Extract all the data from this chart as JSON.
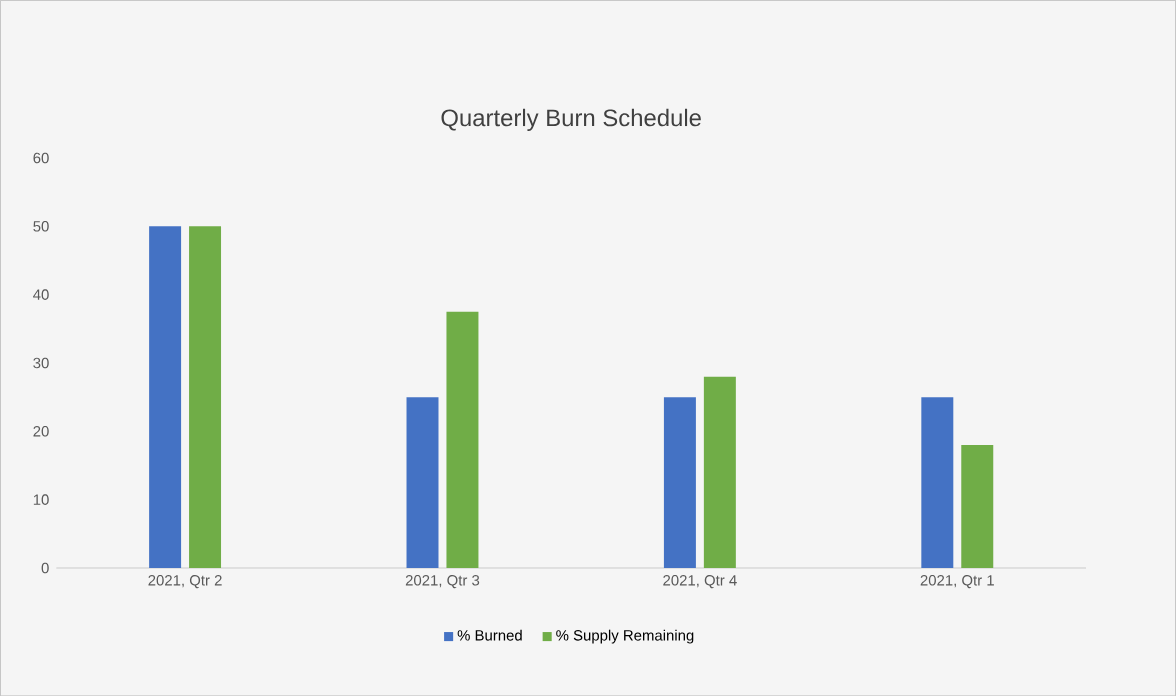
{
  "chart_data": {
    "type": "bar",
    "title": "Quarterly Burn Schedule",
    "categories": [
      "2021, Qtr 2",
      "2021, Qtr 3",
      "2021, Qtr 4",
      "2021, Qtr 1"
    ],
    "series": [
      {
        "name": "% Burned",
        "color": "#4472c4",
        "values": [
          50,
          25,
          25,
          25
        ]
      },
      {
        "name": "% Supply Remaining",
        "color": "#70ad47",
        "values": [
          50,
          37.5,
          28,
          18
        ]
      }
    ],
    "ylim": [
      0,
      60
    ],
    "yticks": [
      0,
      10,
      20,
      30,
      40,
      50,
      60
    ],
    "grid": false,
    "legend": "bottom"
  }
}
